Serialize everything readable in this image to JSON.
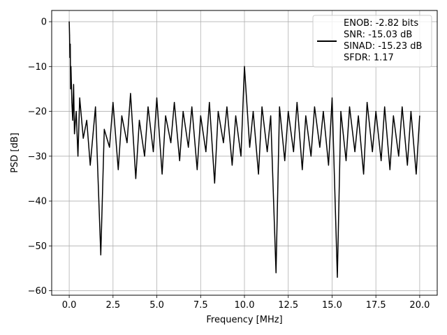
{
  "chart_data": {
    "type": "line",
    "xlabel": "Frequency [MHz]",
    "ylabel": "PSD [dB]",
    "xlim": [
      -1.0,
      21.0
    ],
    "ylim": [
      -61,
      2.5
    ],
    "xticks": [
      0.0,
      2.5,
      5.0,
      7.5,
      10.0,
      12.5,
      15.0,
      17.5,
      20.0
    ],
    "xtick_labels": [
      "0.0",
      "2.5",
      "5.0",
      "7.5",
      "10.0",
      "12.5",
      "15.0",
      "17.5",
      "20.0"
    ],
    "yticks": [
      0,
      -10,
      -20,
      -30,
      -40,
      -50,
      -60
    ],
    "ytick_labels": [
      "0",
      "−10",
      "−20",
      "−30",
      "−40",
      "−50",
      "−60"
    ],
    "grid": true,
    "legend_position": "top-right",
    "legend_lines": [
      "ENOB: -2.82 bits",
      "SNR: -15.03 dB",
      "SINAD: -15.23 dB",
      "SFDR: 1.17"
    ],
    "series": [
      {
        "color": "#000000",
        "note_text": "",
        "x": [
          0.0,
          0.02,
          0.04,
          0.06,
          0.08,
          0.1,
          0.15,
          0.2,
          0.25,
          0.3,
          0.4,
          0.5,
          0.6,
          0.8,
          1.0,
          1.2,
          1.5,
          1.8,
          2.0,
          2.3,
          2.5,
          2.8,
          3.0,
          3.3,
          3.5,
          3.8,
          4.0,
          4.3,
          4.5,
          4.8,
          5.0,
          5.3,
          5.5,
          5.8,
          6.0,
          6.3,
          6.5,
          6.8,
          7.0,
          7.3,
          7.5,
          7.8,
          8.0,
          8.3,
          8.5,
          8.8,
          9.0,
          9.3,
          9.5,
          9.8,
          10.0,
          10.3,
          10.5,
          10.8,
          11.0,
          11.3,
          11.5,
          11.8,
          12.0,
          12.3,
          12.5,
          12.8,
          13.0,
          13.3,
          13.5,
          13.8,
          14.0,
          14.3,
          14.5,
          14.8,
          15.0,
          15.3,
          15.5,
          15.8,
          16.0,
          16.3,
          16.5,
          16.8,
          17.0,
          17.3,
          17.5,
          17.8,
          18.0,
          18.3,
          18.5,
          18.8,
          19.0,
          19.3,
          19.5,
          19.8,
          20.0
        ],
        "y": [
          0,
          -3,
          -8,
          -5,
          -15,
          -10,
          -18,
          -22,
          -14,
          -25,
          -20,
          -30,
          -17,
          -26,
          -22,
          -32,
          -19,
          -52,
          -24,
          -28,
          -18,
          -33,
          -21,
          -27,
          -16,
          -35,
          -22,
          -30,
          -19,
          -29,
          -17,
          -34,
          -21,
          -27,
          -18,
          -31,
          -20,
          -28,
          -19,
          -33,
          -21,
          -29,
          -18,
          -36,
          -20,
          -27,
          -19,
          -32,
          -21,
          -30,
          -10,
          -28,
          -20,
          -34,
          -19,
          -29,
          -21,
          -56,
          -19,
          -31,
          -20,
          -29,
          -18,
          -33,
          -21,
          -30,
          -19,
          -28,
          -20,
          -32,
          -17,
          -57,
          -20,
          -31,
          -19,
          -29,
          -21,
          -34,
          -18,
          -29,
          -20,
          -31,
          -19,
          -33,
          -21,
          -30,
          -19,
          -32,
          -20,
          -34,
          -21
        ]
      }
    ]
  }
}
